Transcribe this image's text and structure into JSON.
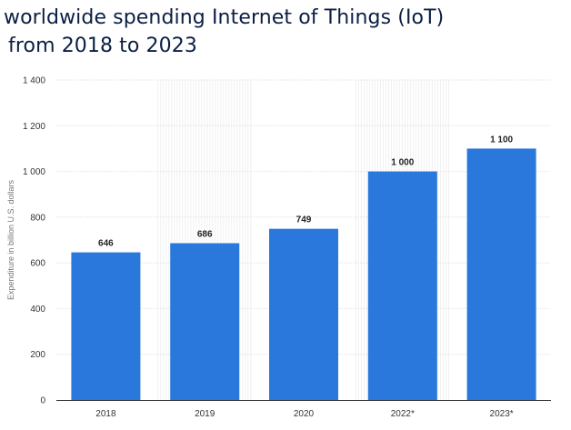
{
  "title_line1": "worldwide spending Internet of Things (IoT)",
  "title_line2": "from 2018 to 2023",
  "chart_data": {
    "type": "bar",
    "categories": [
      "2018",
      "2019",
      "2020",
      "2022*",
      "2023*"
    ],
    "values": [
      646,
      686,
      749,
      1000,
      1100
    ],
    "value_labels": [
      "646",
      "686",
      "749",
      "1 000",
      "1 100"
    ],
    "ylabel": "Expenditure in billion U.S. dollars",
    "ylim": [
      0,
      1400
    ],
    "yticks": [
      0,
      200,
      400,
      600,
      800,
      1000,
      1200,
      1400
    ],
    "ytick_labels": [
      "0",
      "200",
      "400",
      "600",
      "800",
      "1 000",
      "1 200",
      "1 400"
    ],
    "grid": true,
    "bar_color": "#2a78dc",
    "grid_color": "#e2e2e2",
    "axis_color": "#333333"
  }
}
